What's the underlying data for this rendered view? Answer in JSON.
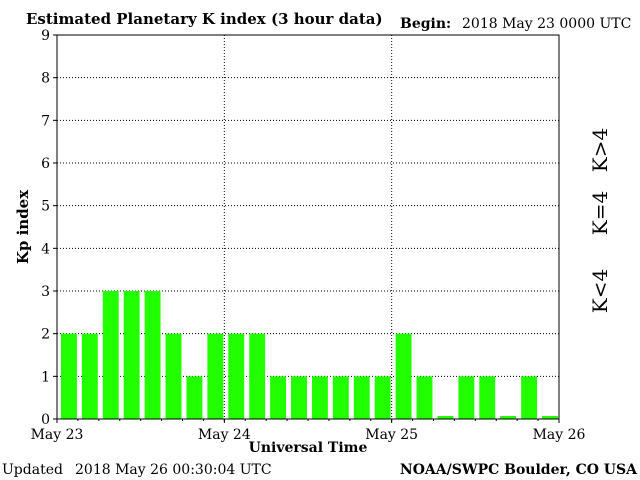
{
  "chart_data": {
    "type": "bar",
    "title": "Estimated Planetary K index (3 hour data)",
    "begin_label": "Begin:",
    "begin_value": "2018 May 23 0000 UTC",
    "xlabel": "Universal Time",
    "ylabel": "Kp index",
    "ylim": [
      0,
      9
    ],
    "yticks": [
      "0",
      "1",
      "2",
      "3",
      "4",
      "5",
      "6",
      "7",
      "8",
      "9"
    ],
    "xticks": [
      "May 23",
      "May 24",
      "May 25",
      "May 26"
    ],
    "x_interval_hours": 3,
    "values": [
      2,
      2,
      3,
      3,
      3,
      2,
      1,
      2,
      2,
      2,
      1,
      1,
      1,
      1,
      1,
      1,
      2,
      1,
      0.07,
      1,
      1,
      0.07,
      1,
      0.07
    ],
    "grid": true,
    "legend": [
      {
        "label": "K<4",
        "color": "#33ee33"
      },
      {
        "label": "K=4",
        "color": "#ffcc00"
      },
      {
        "label": "K>4",
        "color": "#ff3322"
      }
    ],
    "bar_color": "#22ff00"
  },
  "footer": {
    "updated_label": "Updated",
    "updated_value": "2018 May 26 00:30:04 UTC",
    "source": "NOAA/SWPC Boulder, CO USA"
  }
}
